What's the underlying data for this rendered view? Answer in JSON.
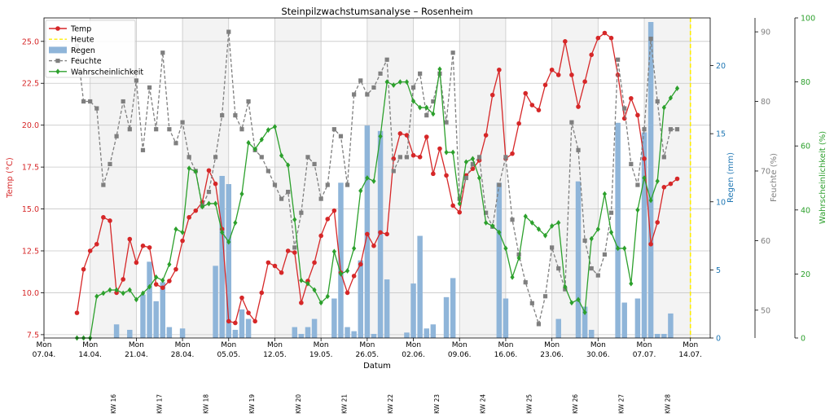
{
  "chart_data": {
    "type": "line",
    "title": "Steinpilzwachstumsanalyse – Rosenheim",
    "xlabel": "Datum",
    "x_ticks": [
      "Mon\n07.04.",
      "Mon\n14.04.",
      "Mon\n21.04.",
      "Mon\n28.04.",
      "Mon\n05.05.",
      "Mon\n12.05.",
      "Mon\n19.05.",
      "Mon\n26.05.",
      "Mon\n02.06.",
      "Mon\n09.06.",
      "Mon\n16.06.",
      "Mon\n23.06.",
      "Mon\n30.06.",
      "Mon\n07.07.",
      "Mon\n14.07."
    ],
    "week_labels": [
      "KW 16",
      "KW 17",
      "KW 18",
      "KW 19",
      "KW 20",
      "KW 21",
      "KW 22",
      "KW 23",
      "KW 24",
      "KW 25",
      "KW 26",
      "KW 27",
      "KW 28"
    ],
    "x_range_days": [
      0,
      101
    ],
    "today_day": 98,
    "start_day": 5,
    "axes": {
      "temp": {
        "label": "Temp (°C)",
        "ylim": [
          7.3,
          26.4
        ],
        "ticks": [
          7.5,
          10.0,
          12.5,
          15.0,
          17.5,
          20.0,
          22.5,
          25.0
        ],
        "color": "#d62728"
      },
      "rain": {
        "label": "Regen (mm)",
        "ylim": [
          0,
          23.5
        ],
        "ticks": [
          0,
          5,
          10,
          15,
          20
        ],
        "color": "#1f77b4"
      },
      "humidity": {
        "label": "Feuchte (%)",
        "ylim": [
          46,
          92
        ],
        "ticks": [
          50,
          60,
          70,
          80,
          90
        ],
        "color": "#7f7f7f"
      },
      "probability": {
        "label": "Wahrscheinlichkeit (%)",
        "ylim": [
          0,
          100
        ],
        "ticks": [
          0,
          20,
          40,
          60,
          80,
          100
        ],
        "color": "#2ca02c"
      }
    },
    "legend": {
      "placement": "top-left",
      "entries": [
        "Temp",
        "Heute",
        "Regen",
        "Feuchte",
        "Wahrscheinlichkeit"
      ]
    },
    "grid": true,
    "series": [
      {
        "name": "Temp",
        "axis": "temp",
        "color": "#d62728",
        "values": [
          8.8,
          11.4,
          12.5,
          12.9,
          14.5,
          14.3,
          10.0,
          10.8,
          13.2,
          11.8,
          12.8,
          12.7,
          10.5,
          10.3,
          10.7,
          11.4,
          13.1,
          14.5,
          14.9,
          15.4,
          17.3,
          16.5,
          13.8,
          8.3,
          8.2,
          9.7,
          8.8,
          8.3,
          10.0,
          11.8,
          11.6,
          11.2,
          12.5,
          12.4,
          9.4,
          10.7,
          11.8,
          13.4,
          14.4,
          14.9,
          11.2,
          10.0,
          11.0,
          11.7,
          13.5,
          12.8,
          13.6,
          13.5,
          18.0,
          19.5,
          19.4,
          18.2,
          18.1,
          19.3,
          17.1,
          18.6,
          17.0,
          15.2,
          14.8,
          17.0,
          17.4,
          17.9,
          19.4,
          21.8,
          23.3,
          18.0,
          18.3,
          20.1,
          21.9,
          21.2,
          20.9,
          22.4,
          23.3,
          23.0,
          25.0,
          23.0,
          21.1,
          22.6,
          24.2,
          25.2,
          25.5,
          25.2,
          23.0,
          20.4,
          21.6,
          20.6,
          18.0,
          12.9,
          14.2,
          16.3,
          16.5,
          16.8
        ]
      },
      {
        "name": "Feuchte",
        "axis": "humidity",
        "color": "#7f7f7f",
        "values": [
          88,
          80,
          80,
          79,
          68,
          71,
          75,
          80,
          76,
          83,
          73,
          82,
          76,
          87,
          76,
          74,
          77,
          72,
          70,
          65,
          67,
          72,
          78,
          90,
          78,
          76,
          80,
          73,
          72,
          70,
          68,
          66,
          67,
          59,
          64,
          72,
          71,
          66,
          68,
          76,
          75,
          68,
          81,
          83,
          81,
          82,
          84,
          86,
          70,
          72,
          72,
          82,
          84,
          78,
          80,
          84,
          77,
          87,
          66,
          69,
          71,
          72,
          64,
          62,
          68,
          72,
          63,
          58,
          54,
          51,
          48,
          52,
          59,
          56,
          53,
          77,
          73,
          60,
          56,
          55,
          58,
          64,
          86,
          79,
          71,
          68,
          76,
          89,
          80,
          72,
          76,
          76
        ]
      },
      {
        "name": "Wahrscheinlichkeit",
        "axis": "probability",
        "color": "#2ca02c",
        "values": [
          0,
          0,
          0,
          13,
          14,
          15,
          15,
          14,
          15,
          12,
          14,
          16,
          19,
          18,
          23,
          34,
          33,
          53,
          52,
          41,
          42,
          42,
          33,
          30,
          36,
          45,
          61,
          59,
          62,
          65,
          66,
          57,
          54,
          37,
          18,
          17,
          15,
          11,
          13,
          27,
          20,
          21,
          28,
          46,
          50,
          49,
          63,
          80,
          79,
          80,
          80,
          74,
          72,
          72,
          70,
          84,
          58,
          58,
          42,
          55,
          56,
          50,
          36,
          35,
          33,
          28,
          19,
          25,
          38,
          36,
          34,
          32,
          35,
          36,
          16,
          11,
          12,
          8,
          31,
          34,
          45,
          33,
          28,
          28,
          17,
          40,
          50,
          43,
          49,
          72,
          75,
          78
        ]
      },
      {
        "name": "Regen",
        "axis": "rain",
        "type": "bar",
        "color": "#8fb5d9",
        "values": [
          0,
          0,
          0,
          0,
          0,
          0,
          1,
          0,
          0.6,
          0,
          3.2,
          5.6,
          2.7,
          4.1,
          0.8,
          0,
          0.7,
          0,
          0,
          0,
          0,
          5.3,
          11.9,
          11.3,
          0.6,
          2.1,
          1.4,
          0,
          0,
          0,
          0,
          0,
          0,
          0.8,
          0.3,
          0.8,
          1.4,
          0,
          0,
          2.9,
          11.4,
          0.8,
          0.5,
          5.7,
          15.6,
          0.3,
          15.2,
          4.3,
          0,
          0,
          0.4,
          4.0,
          7.5,
          0.7,
          1.0,
          0,
          3.0,
          4.4,
          0,
          0,
          0,
          0,
          0,
          0,
          11.4,
          2.9,
          0,
          0,
          0,
          0,
          0,
          0,
          0,
          1.4,
          0,
          0,
          11.5,
          2.3,
          0.6,
          0,
          0,
          0,
          15.8,
          2.6,
          0,
          2.9,
          15.1,
          23.2,
          0.3,
          0.3,
          1.8,
          0
        ]
      }
    ]
  }
}
